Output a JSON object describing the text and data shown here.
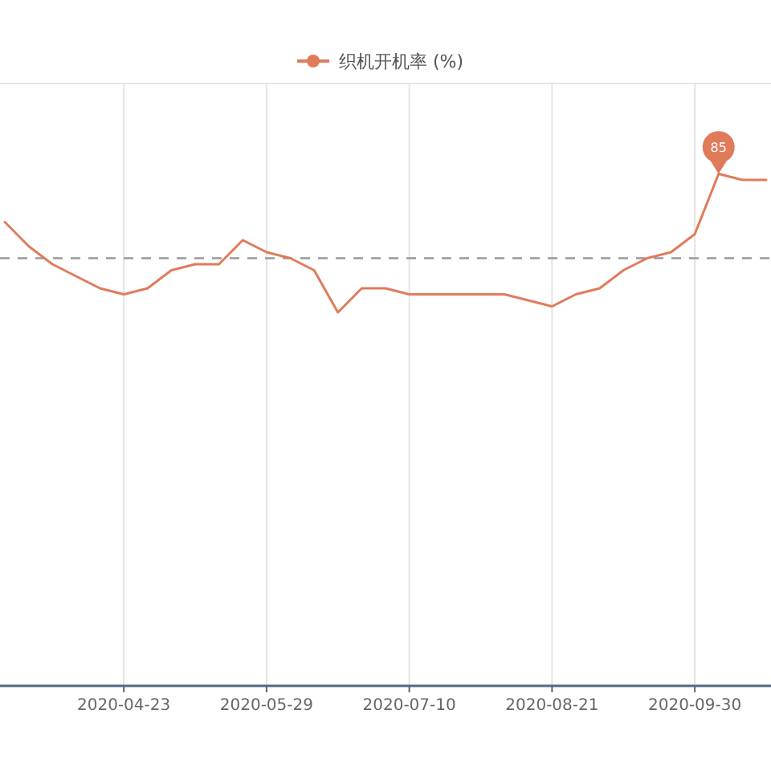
{
  "chart_data": {
    "type": "line",
    "legend": "top",
    "grid": "x",
    "marker": "none",
    "line_style": "solid",
    "tick_labels": "x",
    "ylim": [
      0,
      100
    ],
    "categories": [
      null,
      null,
      null,
      null,
      null,
      "2020-04-23",
      null,
      null,
      null,
      null,
      null,
      "2020-05-29",
      null,
      null,
      null,
      null,
      null,
      "2020-07-10",
      null,
      null,
      null,
      null,
      null,
      "2020-08-21",
      null,
      null,
      null,
      null,
      null,
      "2020-09-30",
      null,
      null,
      null
    ],
    "series": [
      {
        "name": "织机开机率 (%)",
        "color": "#e07b5a",
        "values": [
          77,
          73,
          70,
          68,
          66,
          65,
          66,
          69,
          70,
          70,
          74,
          72,
          71,
          69,
          62,
          66,
          66,
          65,
          65,
          65,
          65,
          65,
          64,
          63,
          65,
          66,
          69,
          71,
          72,
          75,
          85,
          84,
          84
        ],
        "value_labels": [
          null,
          null,
          null,
          null,
          null,
          null,
          null,
          null,
          null,
          null,
          null,
          null,
          null,
          null,
          null,
          null,
          null,
          null,
          null,
          null,
          null,
          null,
          null,
          null,
          null,
          null,
          null,
          null,
          null,
          null,
          "85",
          null,
          null
        ]
      }
    ],
    "ref_lines": [
      {
        "axis": "y",
        "value": 71,
        "color": "#999999",
        "line_style": "dashed"
      }
    ]
  }
}
